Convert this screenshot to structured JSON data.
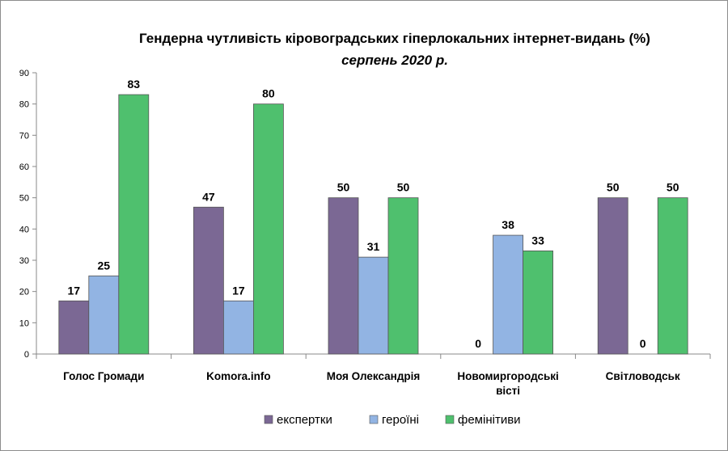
{
  "chart_data": {
    "type": "bar",
    "title": "Гендерна чутливість кіровоградських гіперлокальних інтернет-видань (%)",
    "subtitle": "серпень 2020 р.",
    "categories": [
      [
        "Голос Громади"
      ],
      [
        "Komora.info"
      ],
      [
        "Моя Олександрія"
      ],
      [
        "Новомиргородські",
        "вісті"
      ],
      [
        "Світловодськ"
      ]
    ],
    "series": [
      {
        "name": "експертки",
        "color": "#7b6894",
        "values": [
          17,
          47,
          50,
          0,
          50
        ]
      },
      {
        "name": "героїні",
        "color": "#92b4e3",
        "values": [
          25,
          17,
          31,
          38,
          0
        ]
      },
      {
        "name": "фемінітиви",
        "color": "#4fc06e",
        "values": [
          83,
          80,
          50,
          33,
          50
        ]
      }
    ],
    "ylim": [
      0,
      90
    ],
    "yticks": [
      0,
      10,
      20,
      30,
      40,
      50,
      60,
      70,
      80,
      90
    ],
    "grid": false,
    "legend": "bottom",
    "xlabel": "",
    "ylabel": ""
  }
}
